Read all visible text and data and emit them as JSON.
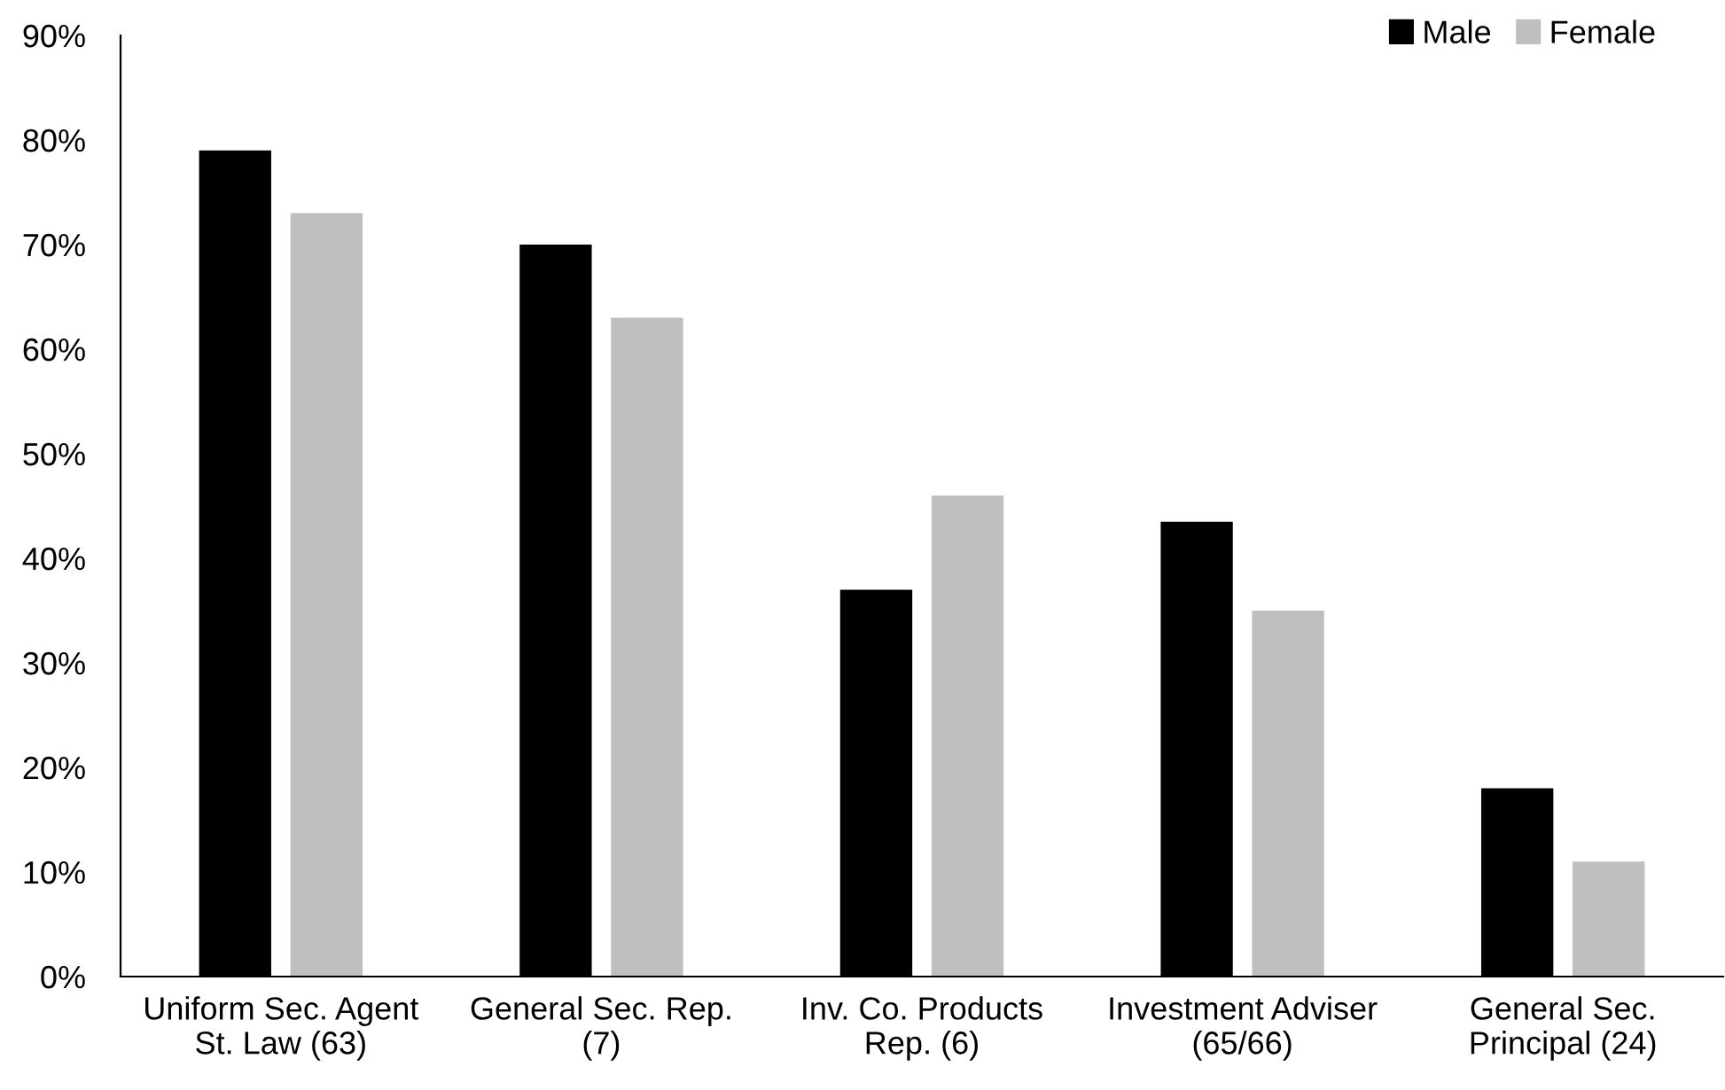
{
  "chart_data": {
    "type": "bar",
    "categories": [
      "Uniform Sec. Agent\nSt. Law (63)",
      "General Sec. Rep.\n(7)",
      "Inv. Co. Products\nRep. (6)",
      "Investment Adviser\n(65/66)",
      "General Sec.\nPrincipal (24)"
    ],
    "series": [
      {
        "name": "Male",
        "color": "#000000",
        "values": [
          79,
          70,
          37,
          43.5,
          18
        ]
      },
      {
        "name": "Female",
        "color": "#bfbfbf",
        "values": [
          73,
          63,
          46,
          35,
          11
        ]
      }
    ],
    "ylim": [
      0,
      90
    ],
    "yticks": [
      {
        "value": 0,
        "label": "0%"
      },
      {
        "value": 10,
        "label": "10%"
      },
      {
        "value": 20,
        "label": "20%"
      },
      {
        "value": 30,
        "label": "30%"
      },
      {
        "value": 40,
        "label": "40%"
      },
      {
        "value": 50,
        "label": "50%"
      },
      {
        "value": 60,
        "label": "60%"
      },
      {
        "value": 70,
        "label": "70%"
      },
      {
        "value": 80,
        "label": "80%"
      },
      {
        "value": 90,
        "label": "90%"
      }
    ],
    "grid": false,
    "legend": "top right"
  }
}
